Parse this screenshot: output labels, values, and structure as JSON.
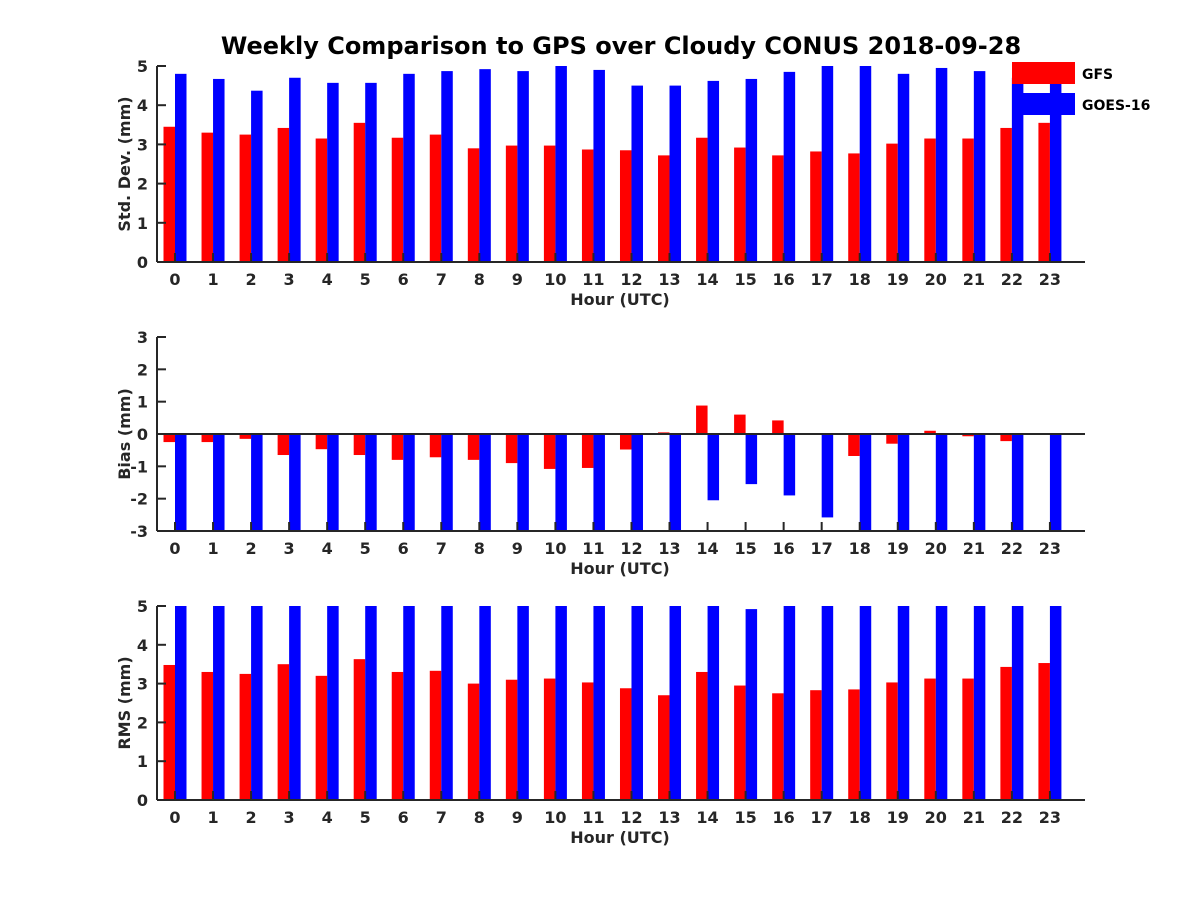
{
  "title": "Weekly Comparison to GPS over Cloudy CONUS 2018-09-28",
  "legend": {
    "placement": "top-right",
    "entries": [
      {
        "name": "GFS",
        "color": "#ff0000"
      },
      {
        "name": "GOES-16",
        "color": "#0000ff"
      }
    ]
  },
  "chart_data": [
    {
      "type": "bar",
      "xlabel": "Hour (UTC)",
      "ylabel": "Std. Dev. (mm)",
      "ylim": [
        0,
        5
      ],
      "yticks": [
        "0",
        "1",
        "2",
        "3",
        "4",
        "5"
      ],
      "categories": [
        "0",
        "1",
        "2",
        "3",
        "4",
        "5",
        "6",
        "7",
        "8",
        "9",
        "10",
        "11",
        "12",
        "13",
        "14",
        "15",
        "16",
        "17",
        "18",
        "19",
        "20",
        "21",
        "22",
        "23"
      ],
      "series": [
        {
          "name": "GFS",
          "color": "#ff0000",
          "values": [
            3.45,
            3.3,
            3.25,
            3.42,
            3.15,
            3.55,
            3.17,
            3.25,
            2.9,
            2.97,
            2.97,
            2.87,
            2.85,
            2.72,
            3.17,
            2.92,
            2.72,
            2.82,
            2.77,
            3.02,
            3.15,
            3.15,
            3.42,
            3.55
          ]
        },
        {
          "name": "GOES-16",
          "color": "#0000ff",
          "values": [
            4.8,
            4.67,
            4.37,
            4.7,
            4.57,
            4.57,
            4.8,
            4.87,
            4.92,
            4.87,
            5.0,
            4.9,
            4.5,
            4.5,
            4.62,
            4.67,
            4.85,
            5.0,
            5.0,
            4.8,
            4.95,
            4.87,
            4.7,
            4.6
          ]
        }
      ]
    },
    {
      "type": "bar",
      "xlabel": "Hour (UTC)",
      "ylabel": "Bias (mm)",
      "ylim": [
        -3,
        3
      ],
      "yticks": [
        "-3",
        "-2",
        "-1",
        "0",
        "1",
        "2",
        "3"
      ],
      "zero_line": true,
      "categories": [
        "0",
        "1",
        "2",
        "3",
        "4",
        "5",
        "6",
        "7",
        "8",
        "9",
        "10",
        "11",
        "12",
        "13",
        "14",
        "15",
        "16",
        "17",
        "18",
        "19",
        "20",
        "21",
        "22",
        "23"
      ],
      "series": [
        {
          "name": "GFS",
          "color": "#ff0000",
          "values": [
            -0.25,
            -0.25,
            -0.15,
            -0.65,
            -0.47,
            -0.65,
            -0.8,
            -0.72,
            -0.8,
            -0.9,
            -1.08,
            -1.05,
            -0.48,
            0.05,
            0.88,
            0.6,
            0.42,
            0.02,
            -0.68,
            -0.3,
            0.1,
            -0.07,
            -0.22,
            0.02
          ]
        },
        {
          "name": "GOES-16",
          "color": "#0000ff",
          "values": [
            -3.0,
            -3.0,
            -3.0,
            -3.0,
            -3.0,
            -3.0,
            -3.0,
            -3.0,
            -3.0,
            -3.0,
            -3.0,
            -3.0,
            -3.0,
            -3.0,
            -2.05,
            -1.55,
            -1.9,
            -2.58,
            -3.0,
            -3.0,
            -3.0,
            -3.0,
            -3.0,
            -3.0
          ]
        }
      ]
    },
    {
      "type": "bar",
      "xlabel": "Hour (UTC)",
      "ylabel": "RMS (mm)",
      "ylim": [
        0,
        5
      ],
      "yticks": [
        "0",
        "1",
        "2",
        "3",
        "4",
        "5"
      ],
      "categories": [
        "0",
        "1",
        "2",
        "3",
        "4",
        "5",
        "6",
        "7",
        "8",
        "9",
        "10",
        "11",
        "12",
        "13",
        "14",
        "15",
        "16",
        "17",
        "18",
        "19",
        "20",
        "21",
        "22",
        "23"
      ],
      "series": [
        {
          "name": "GFS",
          "color": "#ff0000",
          "values": [
            3.48,
            3.3,
            3.25,
            3.5,
            3.2,
            3.63,
            3.3,
            3.33,
            3.0,
            3.1,
            3.13,
            3.03,
            2.88,
            2.7,
            3.3,
            2.95,
            2.75,
            2.83,
            2.85,
            3.03,
            3.13,
            3.13,
            3.43,
            3.53
          ]
        },
        {
          "name": "GOES-16",
          "color": "#0000ff",
          "values": [
            5.0,
            5.0,
            5.0,
            5.0,
            5.0,
            5.0,
            5.0,
            5.0,
            5.0,
            5.0,
            5.0,
            5.0,
            5.0,
            5.0,
            5.0,
            4.92,
            5.0,
            5.0,
            5.0,
            5.0,
            5.0,
            5.0,
            5.0,
            5.0
          ]
        }
      ]
    }
  ]
}
